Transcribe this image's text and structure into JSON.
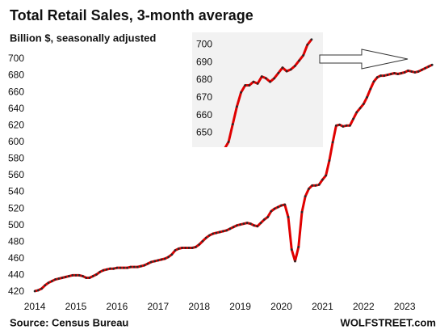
{
  "chart_data": [
    {
      "type": "line",
      "title": "Total Retail Sales, 3-month average",
      "subtitle": "Billion $, seasonally adjusted",
      "source": "Source: Census Bureau",
      "brand": "WOLFSTREET.com",
      "color": "#e00000",
      "marker_color": "#2a2a2a",
      "grid": false,
      "xlim": [
        2013.9,
        2023.82
      ],
      "ylim": [
        415,
        705
      ],
      "xticks": [
        2014,
        2015,
        2016,
        2017,
        2018,
        2019,
        2020,
        2021,
        2022,
        2023
      ],
      "yticks": [
        420,
        440,
        460,
        480,
        500,
        520,
        540,
        560,
        580,
        600,
        620,
        640,
        660,
        680,
        700
      ],
      "x": [
        2014,
        2014.083,
        2014.167,
        2014.25,
        2014.333,
        2014.417,
        2014.5,
        2014.583,
        2014.667,
        2014.75,
        2014.833,
        2014.917,
        2015,
        2015.083,
        2015.167,
        2015.25,
        2015.333,
        2015.417,
        2015.5,
        2015.583,
        2015.667,
        2015.75,
        2015.833,
        2015.917,
        2016,
        2016.083,
        2016.167,
        2016.25,
        2016.333,
        2016.417,
        2016.5,
        2016.583,
        2016.667,
        2016.75,
        2016.833,
        2016.917,
        2017,
        2017.083,
        2017.167,
        2017.25,
        2017.333,
        2017.417,
        2017.5,
        2017.583,
        2017.667,
        2017.75,
        2017.833,
        2017.917,
        2018,
        2018.083,
        2018.167,
        2018.25,
        2018.333,
        2018.417,
        2018.5,
        2018.583,
        2018.667,
        2018.75,
        2018.833,
        2018.917,
        2019,
        2019.083,
        2019.167,
        2019.25,
        2019.333,
        2019.417,
        2019.5,
        2019.583,
        2019.667,
        2019.75,
        2019.833,
        2019.917,
        2020,
        2020.083,
        2020.167,
        2020.25,
        2020.333,
        2020.417,
        2020.5,
        2020.583,
        2020.667,
        2020.75,
        2020.833,
        2020.917,
        2021,
        2021.083,
        2021.167,
        2021.25,
        2021.333,
        2021.417,
        2021.5,
        2021.583,
        2021.667,
        2021.75,
        2021.833,
        2021.917,
        2022,
        2022.083,
        2022.167,
        2022.25,
        2022.333,
        2022.417,
        2022.5,
        2022.583,
        2022.667,
        2022.75,
        2022.833,
        2022.917,
        2023,
        2023.083,
        2023.167,
        2023.25,
        2023.333,
        2023.417,
        2023.5,
        2023.583,
        2023.667
      ],
      "values": [
        421,
        422,
        424,
        428,
        431,
        433,
        435,
        436,
        437,
        438,
        439,
        440,
        440,
        440,
        439,
        437,
        437,
        439,
        441,
        444,
        446,
        447,
        448,
        448,
        449,
        449,
        449,
        449,
        450,
        450,
        450,
        451,
        452,
        454,
        456,
        457,
        458,
        459,
        460,
        462,
        465,
        470,
        472,
        473,
        473,
        473,
        473,
        474,
        477,
        481,
        485,
        488,
        490,
        491,
        492,
        493,
        494,
        496,
        498,
        500,
        501,
        502,
        503,
        502,
        500,
        499,
        503,
        507,
        510,
        517,
        520,
        522,
        524,
        525,
        510,
        471,
        457,
        474,
        516,
        535,
        544,
        548,
        548,
        549,
        555,
        560,
        578,
        600,
        620,
        621,
        619,
        620,
        620,
        628,
        636,
        641,
        646,
        654,
        664,
        673,
        678,
        680,
        680,
        681,
        682,
        683,
        682,
        683,
        684,
        686,
        685,
        684,
        685,
        687,
        689,
        691,
        693
      ]
    },
    {
      "type": "line",
      "color": "#e00000",
      "marker_color": "#2a2a2a",
      "ylim": [
        642,
        707
      ],
      "yticks": [
        650,
        660,
        670,
        680,
        690,
        700
      ],
      "values": [
        641,
        645,
        655,
        665,
        673,
        677,
        677,
        679,
        678,
        682,
        681,
        679,
        681,
        684,
        687,
        685,
        686,
        688,
        691,
        694,
        700,
        703
      ]
    }
  ]
}
